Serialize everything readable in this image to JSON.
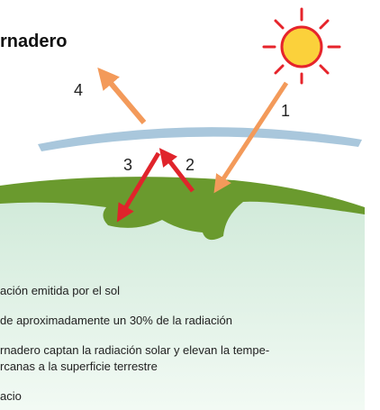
{
  "header": {
    "title": "rnadero"
  },
  "diagram": {
    "labels": [
      "1",
      "2",
      "3",
      "4"
    ]
  },
  "captions": [
    "ación emitida por el sol",
    "de aproximadamente un 30% de la radiación",
    "rnadero captan la radiación solar y elevan la tempe-",
    "rcanas a la superficie terrestre",
    "acio"
  ]
}
